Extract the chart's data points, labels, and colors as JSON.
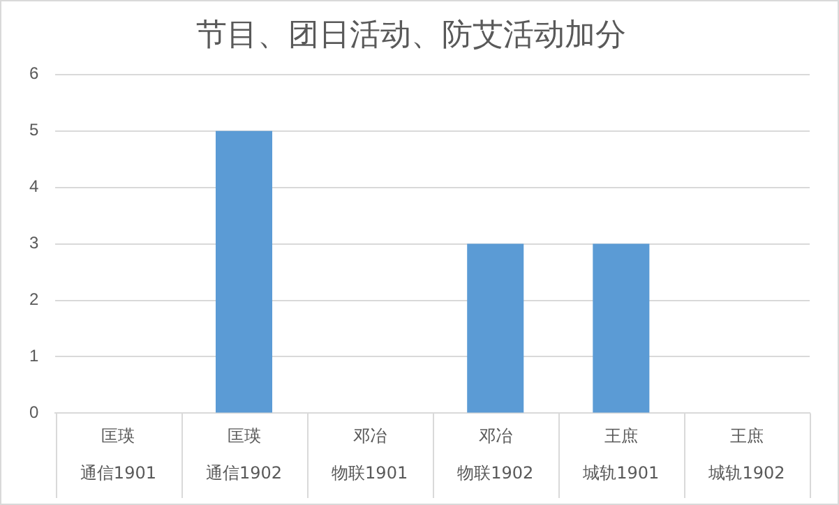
{
  "chart_data": {
    "type": "bar",
    "title": "节目、团日活动、防艾活动加分",
    "categories": [
      "匡瑛通信1901",
      "匡瑛通信1902",
      "邓冶物联1901",
      "邓冶物联1902",
      "王庶城轨1901",
      "王庶城轨1902"
    ],
    "values": [
      0,
      5,
      0,
      3,
      3,
      0
    ],
    "color": "#5b9bd5",
    "ylim": [
      0,
      6
    ],
    "yticks": [
      0,
      1,
      2,
      3,
      4,
      5,
      6
    ],
    "grid": "y",
    "legend": false
  }
}
